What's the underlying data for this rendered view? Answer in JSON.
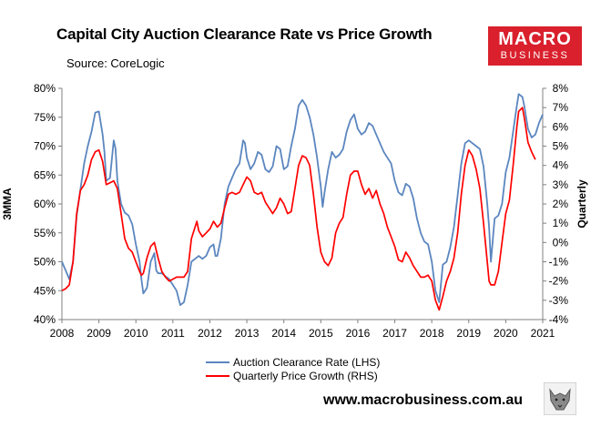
{
  "header": {
    "title": "Capital City Auction Clearance Rate vs Price Growth",
    "source": "Source: CoreLogic"
  },
  "logo": {
    "line1": "MACRO",
    "line2": "BUSINESS"
  },
  "footer": {
    "website": "www.macrobusiness.com.au"
  },
  "chart_data": {
    "type": "line",
    "title": "Capital City Auction Clearance Rate vs Price Growth",
    "ylabel_left": "3MMA",
    "ylabel_right": "Quarterly",
    "xlim": [
      2008,
      2021
    ],
    "ylim_left": [
      40,
      80
    ],
    "ylim_right": [
      -4,
      8
    ],
    "x_ticks": [
      "2008",
      "2009",
      "2010",
      "2011",
      "2012",
      "2013",
      "2014",
      "2015",
      "2016",
      "2017",
      "2018",
      "2019",
      "2020",
      "2021"
    ],
    "y_left_ticks": [
      "40%",
      "45%",
      "50%",
      "55%",
      "60%",
      "65%",
      "70%",
      "75%",
      "80%"
    ],
    "y_right_ticks": [
      "-4%",
      "-3%",
      "-2%",
      "-1%",
      "0%",
      "1%",
      "2%",
      "3%",
      "4%",
      "5%",
      "6%",
      "7%",
      "8%"
    ],
    "legend_position": "bottom",
    "colors": {
      "clearance": "#5b86bf",
      "growth": "#ff0000"
    },
    "series": [
      {
        "name": "Auction Clearance Rate (LHS)",
        "axis": "left",
        "points": [
          [
            2008.0,
            50.0
          ],
          [
            2008.1,
            48.5
          ],
          [
            2008.2,
            47.0
          ],
          [
            2008.3,
            50.0
          ],
          [
            2008.4,
            58.0
          ],
          [
            2008.5,
            62.5
          ],
          [
            2008.6,
            67.0
          ],
          [
            2008.7,
            70.0
          ],
          [
            2008.8,
            72.5
          ],
          [
            2008.9,
            75.8
          ],
          [
            2009.0,
            76.0
          ],
          [
            2009.1,
            72.0
          ],
          [
            2009.15,
            69.0
          ],
          [
            2009.2,
            64.0
          ],
          [
            2009.3,
            64.5
          ],
          [
            2009.4,
            71.0
          ],
          [
            2009.45,
            69.5
          ],
          [
            2009.5,
            64.0
          ],
          [
            2009.6,
            60.0
          ],
          [
            2009.7,
            58.5
          ],
          [
            2009.8,
            58.0
          ],
          [
            2009.9,
            56.5
          ],
          [
            2010.0,
            53.0
          ],
          [
            2010.1,
            50.0
          ],
          [
            2010.15,
            47.0
          ],
          [
            2010.2,
            44.5
          ],
          [
            2010.3,
            45.5
          ],
          [
            2010.4,
            50.0
          ],
          [
            2010.5,
            51.5
          ],
          [
            2010.55,
            48.5
          ],
          [
            2010.6,
            48.0
          ],
          [
            2010.7,
            48.0
          ],
          [
            2010.8,
            47.5
          ],
          [
            2010.9,
            47.0
          ],
          [
            2011.0,
            46.0
          ],
          [
            2011.1,
            45.0
          ],
          [
            2011.2,
            42.5
          ],
          [
            2011.3,
            43.0
          ],
          [
            2011.4,
            46.0
          ],
          [
            2011.5,
            50.0
          ],
          [
            2011.6,
            50.5
          ],
          [
            2011.7,
            51.0
          ],
          [
            2011.8,
            50.5
          ],
          [
            2011.9,
            51.0
          ],
          [
            2012.0,
            52.5
          ],
          [
            2012.1,
            53.0
          ],
          [
            2012.15,
            51.0
          ],
          [
            2012.2,
            51.0
          ],
          [
            2012.3,
            54.0
          ],
          [
            2012.4,
            60.0
          ],
          [
            2012.5,
            63.0
          ],
          [
            2012.6,
            64.5
          ],
          [
            2012.7,
            66.0
          ],
          [
            2012.8,
            67.0
          ],
          [
            2012.9,
            71.0
          ],
          [
            2012.95,
            70.5
          ],
          [
            2013.0,
            68.0
          ],
          [
            2013.1,
            66.0
          ],
          [
            2013.2,
            67.0
          ],
          [
            2013.3,
            69.0
          ],
          [
            2013.4,
            68.5
          ],
          [
            2013.5,
            66.0
          ],
          [
            2013.6,
            65.5
          ],
          [
            2013.7,
            66.5
          ],
          [
            2013.8,
            70.0
          ],
          [
            2013.9,
            69.5
          ],
          [
            2014.0,
            66.0
          ],
          [
            2014.1,
            66.5
          ],
          [
            2014.2,
            70.0
          ],
          [
            2014.3,
            73.0
          ],
          [
            2014.4,
            77.0
          ],
          [
            2014.5,
            78.0
          ],
          [
            2014.6,
            77.0
          ],
          [
            2014.7,
            75.0
          ],
          [
            2014.8,
            72.0
          ],
          [
            2014.9,
            68.0
          ],
          [
            2015.0,
            63.0
          ],
          [
            2015.05,
            59.5
          ],
          [
            2015.1,
            62.0
          ],
          [
            2015.2,
            66.0
          ],
          [
            2015.3,
            69.0
          ],
          [
            2015.4,
            68.0
          ],
          [
            2015.5,
            68.5
          ],
          [
            2015.6,
            69.5
          ],
          [
            2015.7,
            72.5
          ],
          [
            2015.8,
            74.5
          ],
          [
            2015.9,
            75.5
          ],
          [
            2016.0,
            73.0
          ],
          [
            2016.1,
            72.0
          ],
          [
            2016.2,
            72.5
          ],
          [
            2016.3,
            74.0
          ],
          [
            2016.4,
            73.5
          ],
          [
            2016.5,
            72.0
          ],
          [
            2016.6,
            70.5
          ],
          [
            2016.7,
            69.0
          ],
          [
            2016.8,
            68.0
          ],
          [
            2016.9,
            67.0
          ],
          [
            2017.0,
            64.0
          ],
          [
            2017.1,
            62.0
          ],
          [
            2017.2,
            61.5
          ],
          [
            2017.3,
            63.5
          ],
          [
            2017.4,
            63.0
          ],
          [
            2017.5,
            61.0
          ],
          [
            2017.6,
            57.5
          ],
          [
            2017.7,
            55.0
          ],
          [
            2017.8,
            53.5
          ],
          [
            2017.9,
            53.0
          ],
          [
            2018.0,
            50.0
          ],
          [
            2018.1,
            45.0
          ],
          [
            2018.2,
            43.0
          ],
          [
            2018.3,
            49.5
          ],
          [
            2018.4,
            50.0
          ],
          [
            2018.5,
            52.5
          ],
          [
            2018.6,
            56.0
          ],
          [
            2018.7,
            61.5
          ],
          [
            2018.8,
            67.0
          ],
          [
            2018.9,
            70.5
          ],
          [
            2019.0,
            71.0
          ],
          [
            2019.1,
            70.5
          ],
          [
            2019.2,
            70.0
          ],
          [
            2019.3,
            69.5
          ],
          [
            2019.4,
            66.5
          ],
          [
            2019.5,
            60.0
          ],
          [
            2019.55,
            56.0
          ],
          [
            2019.6,
            50.0
          ],
          [
            2019.7,
            57.5
          ],
          [
            2019.8,
            58.0
          ],
          [
            2019.9,
            60.0
          ],
          [
            2020.0,
            65.5
          ],
          [
            2020.1,
            68.0
          ],
          [
            2020.2,
            72.5
          ],
          [
            2020.3,
            77.0
          ],
          [
            2020.35,
            79.0
          ],
          [
            2020.45,
            78.5
          ],
          [
            2020.5,
            77.0
          ],
          [
            2020.6,
            73.0
          ],
          [
            2020.7,
            71.5
          ],
          [
            2020.8,
            72.0
          ],
          [
            2020.9,
            74.0
          ],
          [
            2021.0,
            75.5
          ]
        ]
      },
      {
        "name": "Quarterly Price Growth (RHS)",
        "axis": "right",
        "points": [
          [
            2008.0,
            -2.5
          ],
          [
            2008.1,
            -2.4
          ],
          [
            2008.15,
            -2.3
          ],
          [
            2008.2,
            -2.2
          ],
          [
            2008.3,
            -1.0
          ],
          [
            2008.4,
            1.5
          ],
          [
            2008.5,
            2.7
          ],
          [
            2008.6,
            3.0
          ],
          [
            2008.7,
            3.5
          ],
          [
            2008.8,
            4.3
          ],
          [
            2008.9,
            4.7
          ],
          [
            2009.0,
            4.8
          ],
          [
            2009.1,
            4.2
          ],
          [
            2009.2,
            3.0
          ],
          [
            2009.3,
            3.1
          ],
          [
            2009.4,
            3.2
          ],
          [
            2009.5,
            2.8
          ],
          [
            2009.6,
            1.5
          ],
          [
            2009.7,
            0.2
          ],
          [
            2009.8,
            -0.3
          ],
          [
            2009.9,
            -0.5
          ],
          [
            2010.0,
            -1.0
          ],
          [
            2010.1,
            -1.5
          ],
          [
            2010.15,
            -1.7
          ],
          [
            2010.2,
            -1.6
          ],
          [
            2010.3,
            -0.8
          ],
          [
            2010.4,
            -0.2
          ],
          [
            2010.5,
            0.0
          ],
          [
            2010.6,
            -0.8
          ],
          [
            2010.7,
            -1.5
          ],
          [
            2010.8,
            -1.8
          ],
          [
            2010.9,
            -2.0
          ],
          [
            2011.0,
            -1.9
          ],
          [
            2011.1,
            -1.8
          ],
          [
            2011.2,
            -1.8
          ],
          [
            2011.3,
            -1.8
          ],
          [
            2011.4,
            -1.5
          ],
          [
            2011.5,
            0.2
          ],
          [
            2011.6,
            0.8
          ],
          [
            2011.65,
            1.1
          ],
          [
            2011.7,
            0.6
          ],
          [
            2011.8,
            0.3
          ],
          [
            2011.9,
            0.5
          ],
          [
            2012.0,
            0.7
          ],
          [
            2012.1,
            1.1
          ],
          [
            2012.2,
            0.8
          ],
          [
            2012.3,
            1.0
          ],
          [
            2012.4,
            1.8
          ],
          [
            2012.5,
            2.5
          ],
          [
            2012.6,
            2.6
          ],
          [
            2012.7,
            2.5
          ],
          [
            2012.8,
            2.6
          ],
          [
            2012.9,
            3.0
          ],
          [
            2013.0,
            3.4
          ],
          [
            2013.1,
            3.2
          ],
          [
            2013.2,
            2.6
          ],
          [
            2013.3,
            2.5
          ],
          [
            2013.4,
            2.6
          ],
          [
            2013.5,
            2.1
          ],
          [
            2013.6,
            1.8
          ],
          [
            2013.7,
            1.5
          ],
          [
            2013.8,
            1.8
          ],
          [
            2013.9,
            2.3
          ],
          [
            2014.0,
            2.0
          ],
          [
            2014.1,
            1.5
          ],
          [
            2014.2,
            1.6
          ],
          [
            2014.3,
            2.8
          ],
          [
            2014.4,
            4.0
          ],
          [
            2014.5,
            4.5
          ],
          [
            2014.6,
            4.4
          ],
          [
            2014.7,
            4.0
          ],
          [
            2014.8,
            2.5
          ],
          [
            2014.9,
            0.8
          ],
          [
            2015.0,
            -0.5
          ],
          [
            2015.1,
            -1.0
          ],
          [
            2015.2,
            -1.2
          ],
          [
            2015.3,
            -0.8
          ],
          [
            2015.4,
            0.5
          ],
          [
            2015.5,
            1.0
          ],
          [
            2015.6,
            1.3
          ],
          [
            2015.7,
            2.5
          ],
          [
            2015.8,
            3.5
          ],
          [
            2015.9,
            3.7
          ],
          [
            2016.0,
            3.7
          ],
          [
            2016.1,
            3.0
          ],
          [
            2016.2,
            2.5
          ],
          [
            2016.3,
            2.8
          ],
          [
            2016.4,
            2.3
          ],
          [
            2016.5,
            2.7
          ],
          [
            2016.6,
            2.0
          ],
          [
            2016.7,
            1.5
          ],
          [
            2016.8,
            0.8
          ],
          [
            2016.9,
            0.3
          ],
          [
            2017.0,
            -0.2
          ],
          [
            2017.1,
            -0.9
          ],
          [
            2017.2,
            -1.0
          ],
          [
            2017.3,
            -0.5
          ],
          [
            2017.4,
            -0.8
          ],
          [
            2017.5,
            -1.2
          ],
          [
            2017.6,
            -1.5
          ],
          [
            2017.7,
            -1.8
          ],
          [
            2017.8,
            -1.8
          ],
          [
            2017.9,
            -1.7
          ],
          [
            2018.0,
            -2.0
          ],
          [
            2018.1,
            -3.0
          ],
          [
            2018.2,
            -3.5
          ],
          [
            2018.3,
            -2.8
          ],
          [
            2018.4,
            -2.0
          ],
          [
            2018.5,
            -1.5
          ],
          [
            2018.6,
            -0.8
          ],
          [
            2018.7,
            0.5
          ],
          [
            2018.8,
            2.5
          ],
          [
            2018.9,
            4.0
          ],
          [
            2019.0,
            4.8
          ],
          [
            2019.1,
            4.5
          ],
          [
            2019.2,
            3.8
          ],
          [
            2019.3,
            2.8
          ],
          [
            2019.4,
            1.0
          ],
          [
            2019.5,
            -1.0
          ],
          [
            2019.55,
            -2.0
          ],
          [
            2019.6,
            -2.2
          ],
          [
            2019.7,
            -2.2
          ],
          [
            2019.8,
            -1.5
          ],
          [
            2019.9,
            0.0
          ],
          [
            2020.0,
            1.5
          ],
          [
            2020.1,
            2.2
          ],
          [
            2020.2,
            4.0
          ],
          [
            2020.3,
            6.0
          ],
          [
            2020.35,
            6.8
          ],
          [
            2020.45,
            7.0
          ],
          [
            2020.5,
            6.5
          ],
          [
            2020.6,
            5.2
          ],
          [
            2020.7,
            4.7
          ],
          [
            2020.8,
            4.3
          ]
        ]
      }
    ]
  }
}
